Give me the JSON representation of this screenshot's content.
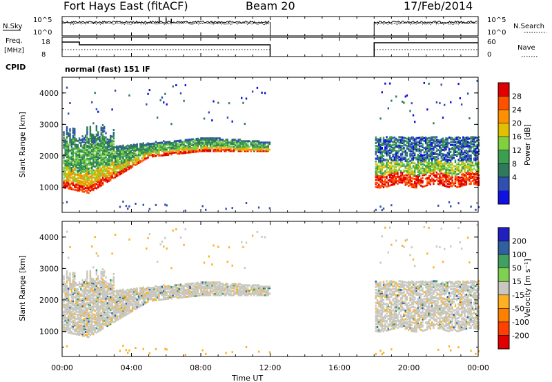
{
  "header": {
    "station": "Fort Hays East (fitACF)",
    "beam": "Beam 20",
    "date": "17/Feb/2014"
  },
  "noise_panel": {
    "left_label": "N.Sky",
    "right_label": "N.Search",
    "left_ticks": [
      "10^5",
      "10^0"
    ],
    "right_ticks": [
      "10^5",
      "10^0"
    ]
  },
  "freq_panel": {
    "left_label_1": "Freq.",
    "left_label_2": "[MHz]",
    "right_label": "Nave",
    "left_ticks": [
      "18",
      "8"
    ],
    "right_ticks": [
      "60",
      "0"
    ]
  },
  "cpid": {
    "label": "CPID",
    "text": "normal (fast) 151 IF"
  },
  "x_axis": {
    "label": "Time UT",
    "ticks": [
      "00:00",
      "04:00",
      "08:00",
      "12:00",
      "16:00",
      "20:00",
      "00:00"
    ],
    "range_hours": [
      0,
      24
    ]
  },
  "colors": {
    "power": [
      "#1010e0",
      "#3050b0",
      "#2f7a5a",
      "#3aa050",
      "#80d040",
      "#e0c000",
      "#ff9000",
      "#ff5000",
      "#e00000"
    ],
    "velocity": [
      "#2020c0",
      "#3060a0",
      "#40a060",
      "#80d050",
      "#c8c8c0",
      "#ffb020",
      "#ff8000",
      "#ff4000",
      "#e00000"
    ]
  },
  "chart_data": [
    {
      "type": "heatmap",
      "title": "",
      "ylabel": "Slant Range [km]",
      "ylim": [
        200,
        4500
      ],
      "yticks": [
        "4000",
        "3000",
        "2000",
        "1000"
      ],
      "colorbar_label": "Power [dB]",
      "colorbar_ticks": [
        "28",
        "24",
        "20",
        "16",
        "12",
        "8",
        "4"
      ],
      "data_gaps_hours": [
        [
          12,
          18
        ]
      ]
    },
    {
      "type": "heatmap",
      "title": "",
      "ylabel": "Slant Range [km]",
      "ylim": [
        200,
        4500
      ],
      "yticks": [
        "4000",
        "3000",
        "2000",
        "1000"
      ],
      "colorbar_label": "Velocity [m s⁻¹]",
      "colorbar_ticks": [
        "200",
        "100",
        "50",
        "15",
        "-15",
        "-50",
        "-100",
        "-200"
      ],
      "data_gaps_hours": [
        [
          12,
          18
        ]
      ]
    }
  ]
}
